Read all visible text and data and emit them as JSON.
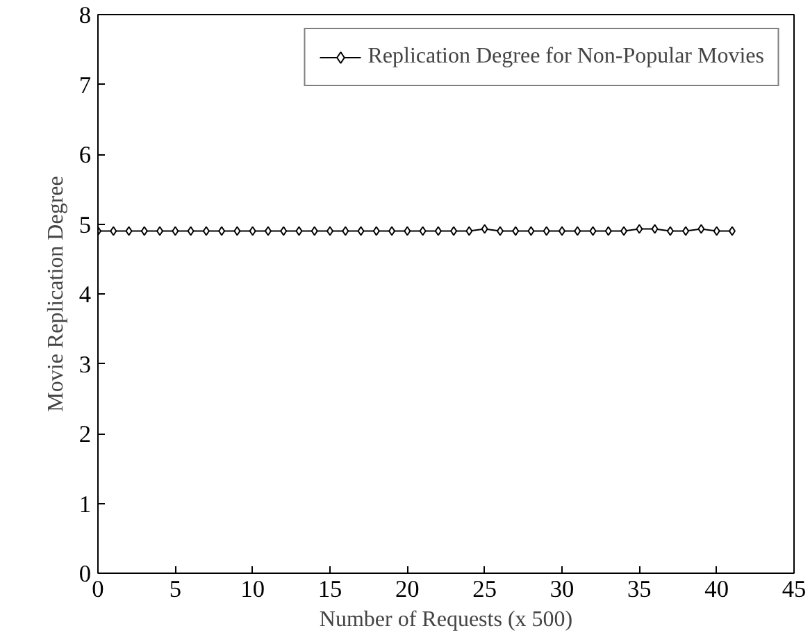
{
  "chart_data": {
    "type": "line",
    "xlabel": "Number of Requests (x 500)",
    "ylabel": "Movie Replication Degree",
    "x": [
      0,
      1,
      2,
      3,
      4,
      5,
      6,
      7,
      8,
      9,
      10,
      11,
      12,
      13,
      14,
      15,
      16,
      17,
      18,
      19,
      20,
      21,
      22,
      23,
      24,
      25,
      26,
      27,
      28,
      29,
      30,
      31,
      32,
      33,
      34,
      35,
      36,
      37,
      38,
      39,
      40,
      41
    ],
    "series": [
      {
        "name": "Replication Degree for Non-Popular Movies",
        "color": "#000000",
        "values": [
          4.9,
          4.9,
          4.9,
          4.9,
          4.9,
          4.9,
          4.9,
          4.9,
          4.9,
          4.9,
          4.9,
          4.9,
          4.9,
          4.9,
          4.9,
          4.9,
          4.9,
          4.9,
          4.9,
          4.9,
          4.9,
          4.9,
          4.9,
          4.9,
          4.9,
          4.93,
          4.9,
          4.9,
          4.9,
          4.9,
          4.9,
          4.9,
          4.9,
          4.9,
          4.9,
          4.93,
          4.93,
          4.9,
          4.9,
          4.93,
          4.9,
          4.9
        ]
      }
    ],
    "xlim": [
      0,
      45
    ],
    "ylim": [
      0,
      8
    ],
    "xticks": [
      0,
      5,
      10,
      15,
      20,
      25,
      30,
      35,
      40,
      45
    ],
    "yticks": [
      0,
      1,
      2,
      3,
      4,
      5,
      6,
      7,
      8
    ],
    "grid": false,
    "legend": "top right",
    "marker": "diamond",
    "line_style": "solid"
  }
}
